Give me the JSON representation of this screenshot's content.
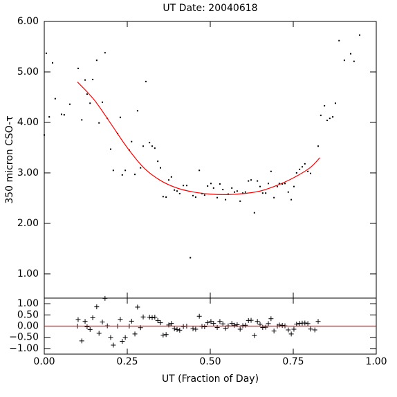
{
  "chart_data": [
    {
      "type": "scatter",
      "title": "UT Date: 20040618",
      "ylabel": "350 micron CSO-τ",
      "xlim": [
        0,
        1
      ],
      "ylim": [
        0.52,
        6.0
      ],
      "yticks": [
        {
          "value": 1,
          "label": "1.00"
        },
        {
          "value": 2,
          "label": "2.00"
        },
        {
          "value": 3,
          "label": "3.00"
        },
        {
          "value": 4,
          "label": "4.00"
        },
        {
          "value": 5,
          "label": "5.00"
        },
        {
          "value": 6,
          "label": "6.00"
        }
      ],
      "series": [
        {
          "mode": "markers",
          "marker": "dot",
          "color": "#000000",
          "x": [
            0.0,
            0.006,
            0.015,
            0.025,
            0.033,
            0.052,
            0.06,
            0.077,
            0.102,
            0.113,
            0.123,
            0.129,
            0.138,
            0.146,
            0.158,
            0.165,
            0.175,
            0.183,
            0.19,
            0.2,
            0.208,
            0.221,
            0.229,
            0.235,
            0.244,
            0.256,
            0.263,
            0.273,
            0.281,
            0.29,
            0.298,
            0.306,
            0.317,
            0.325,
            0.333,
            0.342,
            0.35,
            0.358,
            0.367,
            0.375,
            0.383,
            0.392,
            0.4,
            0.408,
            0.419,
            0.429,
            0.44,
            0.448,
            0.456,
            0.467,
            0.475,
            0.483,
            0.492,
            0.502,
            0.51,
            0.521,
            0.529,
            0.538,
            0.546,
            0.554,
            0.565,
            0.573,
            0.581,
            0.59,
            0.598,
            0.606,
            0.615,
            0.623,
            0.633,
            0.642,
            0.65,
            0.658,
            0.667,
            0.675,
            0.683,
            0.692,
            0.702,
            0.708,
            0.717,
            0.725,
            0.735,
            0.744,
            0.752,
            0.76,
            0.769,
            0.777,
            0.785,
            0.794,
            0.802,
            0.825,
            0.833,
            0.844,
            0.852,
            0.86,
            0.869,
            0.877,
            0.888,
            0.904,
            0.923,
            0.933,
            0.95
          ],
          "values": [
            3.75,
            5.37,
            4.11,
            5.18,
            4.47,
            4.16,
            4.15,
            4.36,
            5.07,
            4.05,
            4.84,
            4.56,
            4.38,
            4.85,
            5.23,
            3.99,
            4.4,
            5.38,
            4.08,
            3.47,
            3.05,
            3.78,
            4.1,
            2.96,
            3.05,
            3.45,
            3.62,
            2.97,
            4.23,
            3.1,
            3.53,
            4.81,
            3.6,
            3.53,
            3.49,
            3.23,
            3.1,
            2.53,
            2.52,
            2.86,
            2.92,
            2.66,
            2.64,
            2.59,
            2.75,
            2.75,
            1.32,
            2.55,
            2.52,
            3.05,
            2.59,
            2.56,
            2.74,
            2.79,
            2.7,
            2.51,
            2.78,
            2.67,
            2.47,
            2.58,
            2.7,
            2.62,
            2.64,
            2.44,
            2.6,
            2.62,
            2.84,
            2.86,
            2.21,
            2.84,
            2.73,
            2.6,
            2.6,
            2.79,
            3.03,
            2.51,
            2.73,
            2.79,
            2.78,
            2.79,
            2.62,
            2.47,
            2.73,
            3.0,
            3.07,
            3.12,
            3.18,
            3.03,
            2.99,
            3.53,
            4.14,
            4.33,
            4.04,
            4.08,
            4.11,
            4.38,
            5.62,
            5.23,
            5.36,
            5.21,
            5.73
          ]
        },
        {
          "mode": "line",
          "color": "#ff0000",
          "x": [
            0.1,
            0.15,
            0.2,
            0.25,
            0.3,
            0.35,
            0.4,
            0.45,
            0.5,
            0.55,
            0.6,
            0.65,
            0.7,
            0.75,
            0.8,
            0.83
          ],
          "values": [
            4.8,
            4.45,
            3.98,
            3.5,
            3.1,
            2.85,
            2.7,
            2.62,
            2.58,
            2.57,
            2.59,
            2.64,
            2.75,
            2.9,
            3.1,
            3.3
          ]
        }
      ]
    },
    {
      "type": "scatter",
      "xlabel": "UT (Fraction of Day)",
      "xlim": [
        0,
        1
      ],
      "ylim": [
        -1.25,
        1.25
      ],
      "xticks": [
        {
          "value": 0,
          "label": "0.00"
        },
        {
          "value": 0.25,
          "label": "0.25"
        },
        {
          "value": 0.5,
          "label": "0.50"
        },
        {
          "value": 0.75,
          "label": "0.75"
        },
        {
          "value": 1,
          "label": "1.00"
        }
      ],
      "yticks": [
        {
          "value": -1,
          "label": "−1.00"
        },
        {
          "value": -0.5,
          "label": "−0.50"
        },
        {
          "value": 0,
          "label": "0.00"
        },
        {
          "value": 0.5,
          "label": "0.50"
        },
        {
          "value": 1,
          "label": "1.00"
        }
      ],
      "series": [
        {
          "mode": "markers",
          "marker": "plus",
          "color": "#000000",
          "x": [
            0.1,
            0.102,
            0.113,
            0.123,
            0.129,
            0.138,
            0.146,
            0.158,
            0.165,
            0.175,
            0.183,
            0.19,
            0.2,
            0.208,
            0.221,
            0.229,
            0.235,
            0.244,
            0.256,
            0.263,
            0.273,
            0.281,
            0.29,
            0.298,
            0.317,
            0.325,
            0.333,
            0.342,
            0.35,
            0.358,
            0.367,
            0.375,
            0.383,
            0.392,
            0.4,
            0.408,
            0.419,
            0.429,
            0.448,
            0.456,
            0.467,
            0.475,
            0.483,
            0.492,
            0.502,
            0.51,
            0.521,
            0.529,
            0.538,
            0.546,
            0.554,
            0.565,
            0.573,
            0.581,
            0.59,
            0.598,
            0.606,
            0.615,
            0.623,
            0.633,
            0.642,
            0.65,
            0.658,
            0.667,
            0.675,
            0.683,
            0.692,
            0.702,
            0.708,
            0.717,
            0.725,
            0.735,
            0.744,
            0.752,
            0.76,
            0.769,
            0.777,
            0.785,
            0.794,
            0.802,
            0.815,
            0.825
          ],
          "values": [
            0.0,
            0.29,
            -0.66,
            0.21,
            -0.03,
            -0.15,
            0.37,
            0.86,
            -0.32,
            0.18,
            1.24,
            0.01,
            -0.51,
            -0.85,
            0.0,
            0.3,
            -0.68,
            -0.51,
            0.0,
            0.22,
            -0.35,
            0.85,
            -0.07,
            0.41,
            0.4,
            0.38,
            0.4,
            0.25,
            0.15,
            -0.4,
            -0.38,
            0.05,
            0.12,
            -0.12,
            -0.15,
            -0.18,
            -0.02,
            0.0,
            -0.12,
            -0.14,
            0.44,
            -0.01,
            -0.03,
            0.15,
            0.21,
            0.12,
            -0.06,
            0.21,
            0.1,
            -0.1,
            0.01,
            0.12,
            0.04,
            0.06,
            -0.14,
            0.02,
            0.04,
            0.25,
            0.26,
            -0.42,
            0.21,
            0.08,
            -0.06,
            -0.05,
            0.11,
            0.33,
            -0.22,
            0.0,
            0.05,
            0.03,
            0.01,
            -0.17,
            -0.35,
            -0.14,
            0.09,
            0.12,
            0.13,
            0.14,
            0.11,
            -0.13,
            -0.17,
            0.21
          ]
        },
        {
          "mode": "line",
          "color": "#ff0000",
          "x": [
            0,
            1
          ],
          "values": [
            0,
            0
          ]
        }
      ]
    }
  ]
}
